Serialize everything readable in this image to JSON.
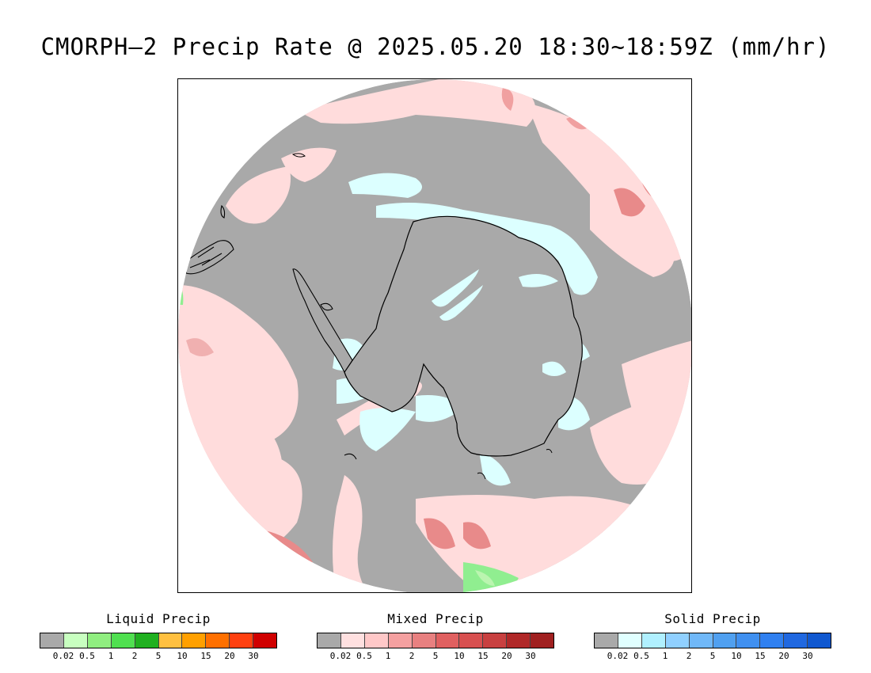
{
  "title": "CMORPH–2 Precip Rate @ 2025.05.20 18:30~18:59Z (mm/hr)",
  "map": {
    "projection": "polar-stereographic-south",
    "colors": {
      "no_precip": "#a9a9a9",
      "outside": "#ffffff",
      "coastline": "#000000"
    },
    "regions": [
      {
        "name": "mixed-light",
        "color": "#ffdcdc"
      },
      {
        "name": "mixed-moderate",
        "color": "#ffc8c8"
      },
      {
        "name": "mixed-heavy",
        "color": "#e88a8a"
      },
      {
        "name": "solid-light",
        "color": "#dcffff"
      },
      {
        "name": "liquid-light",
        "color": "#bbf5b0"
      },
      {
        "name": "liquid-moderate",
        "color": "#90ee90"
      }
    ]
  },
  "legends": [
    {
      "name": "liquid",
      "title": "Liquid Precip",
      "colors": [
        "#a9a9a9",
        "#c8ffc0",
        "#90ee80",
        "#50e050",
        "#20b020",
        "#ffc040",
        "#ffa000",
        "#ff7000",
        "#ff4010",
        "#d00000"
      ],
      "labels": [
        "0.02",
        "0.5",
        "1",
        "2",
        "5",
        "10",
        "15",
        "20",
        "30"
      ]
    },
    {
      "name": "mixed",
      "title": "Mixed Precip",
      "colors": [
        "#a9a9a9",
        "#ffe0e0",
        "#ffc8c8",
        "#f4a0a0",
        "#e88080",
        "#e06060",
        "#d85050",
        "#c84040",
        "#b02828",
        "#a02020"
      ],
      "labels": [
        "0.02",
        "0.5",
        "1",
        "2",
        "5",
        "10",
        "15",
        "20",
        "30"
      ]
    },
    {
      "name": "solid",
      "title": "Solid Precip",
      "colors": [
        "#a9a9a9",
        "#e0ffff",
        "#b0f0ff",
        "#90d0ff",
        "#70b8f8",
        "#50a0f0",
        "#4090f0",
        "#3080f0",
        "#2068e0",
        "#1058d0"
      ],
      "labels": [
        "0.02",
        "0.5",
        "1",
        "2",
        "5",
        "10",
        "15",
        "20",
        "30"
      ]
    }
  ]
}
